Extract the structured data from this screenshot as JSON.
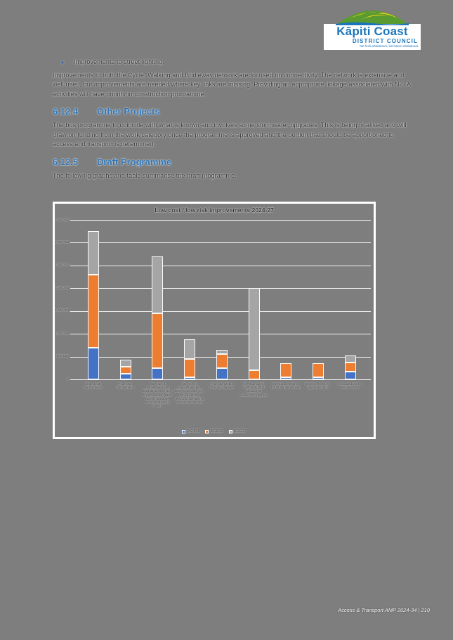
{
  "logo": {
    "title": "Kāpiti Coast",
    "subtitle": "DISTRICT COUNCIL",
    "tagline": "Me hoki whakamuri, kia haere whakamua"
  },
  "bullet": {
    "text": "Improvements to street lighting."
  },
  "paragraphs": {
    "intro": "Improvements to both the Cycle, Walking and Bridleway network are focused on connectivity. The network is extensive and well used, but improvements are needed where key links are missing. Providing an appropriate linkage associated with NZTA activities will have priority in construction programme.",
    "other_projects": "The bus programme to coincide with what is known and involves some stormwater upgrades. This is being finalised and will draw on funding from the work category once the programme is approved and the portion that should be apportioned to access and transport is determined.",
    "draft": "The following graphs and table summarise the draft programme."
  },
  "sections": [
    {
      "number": "6.12.4",
      "title": "Other Projects"
    },
    {
      "number": "6.12.5",
      "title": "Draft Programme"
    }
  ],
  "chart_data": {
    "type": "bar",
    "stacked": true,
    "title": "Low cost / low risk improvements 2024-27",
    "categories": [
      "Shared path improvements",
      "Pedestrian improvements",
      "KB - Speed Management Plan 2024-34 Schools (30) - Implementation (NEW 30km/h Variable/ Permanent Speed limits)",
      "KB - Speed Management Plan 2024-34 Schools (30) - Implementation (Reduced speed limits on School corridors)",
      "Pedestrian Zebra Crossing Upgrades",
      "KB - Raumati Rd, Rosetta Rd and Matatua Rd intersection Upgrade",
      "KB - Elizabeth Street Corridor improvements",
      "Old SH1 streetlight - Upgrade to LED",
      "Associated Works - Rehabilitation"
    ],
    "series": [
      {
        "name": "2024/25",
        "color": "#4472c4",
        "values": [
          700000,
          125000,
          250000,
          50000,
          250000,
          0,
          50000,
          50000,
          175000
        ]
      },
      {
        "name": "2025/26",
        "color": "#ed7d31",
        "values": [
          1600000,
          150000,
          1200000,
          400000,
          300000,
          200000,
          300000,
          300000,
          200000
        ]
      },
      {
        "name": "2026/27",
        "color": "#a5a5a5",
        "values": [
          950000,
          150000,
          1250000,
          425000,
          100000,
          1800000,
          0,
          0,
          150000
        ]
      }
    ],
    "ylim": [
      0,
      3500000
    ],
    "ytick": 500000,
    "xlabel": "",
    "ylabel": "",
    "grid": true,
    "legend_position": "bottom"
  },
  "footer": {
    "text": "Access & Transport AMP 2024-34  |  210"
  }
}
